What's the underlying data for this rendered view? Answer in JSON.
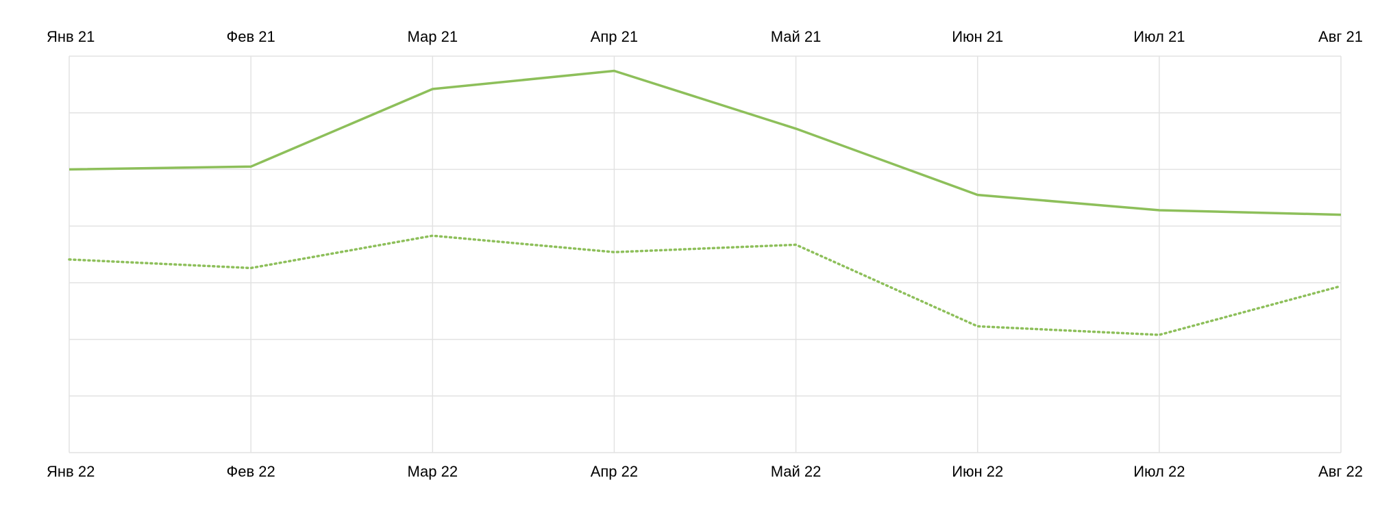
{
  "chart_data": {
    "type": "line",
    "title": "",
    "xlabel": "",
    "ylabel": "",
    "grid": true,
    "legend": "none",
    "ylim": [
      0,
      7
    ],
    "y_gridlines": [
      0,
      1,
      2,
      3,
      4,
      5,
      6,
      7
    ],
    "x_top_labels": [
      "Янв 21",
      "Фев 21",
      "Мар 21",
      "Апр 21",
      "Май 21",
      "Июн 21",
      "Июл 21",
      "Авг 21"
    ],
    "x_bottom_labels": [
      "Янв 22",
      "Фев 22",
      "Мар 22",
      "Апр 22",
      "Май 22",
      "Июн 22",
      "Июл 22",
      "Авг 22"
    ],
    "series": [
      {
        "key": "y2021",
        "style": "solid",
        "color": "#8dbf5a",
        "axis": "top",
        "values": [
          5.0,
          5.05,
          6.42,
          6.74,
          5.72,
          4.55,
          4.28,
          4.2
        ]
      },
      {
        "key": "y2022",
        "style": "dotted",
        "color": "#8dbf5a",
        "axis": "bottom",
        "values": [
          3.41,
          3.26,
          3.83,
          3.54,
          3.67,
          2.23,
          2.08,
          2.94
        ]
      }
    ]
  }
}
